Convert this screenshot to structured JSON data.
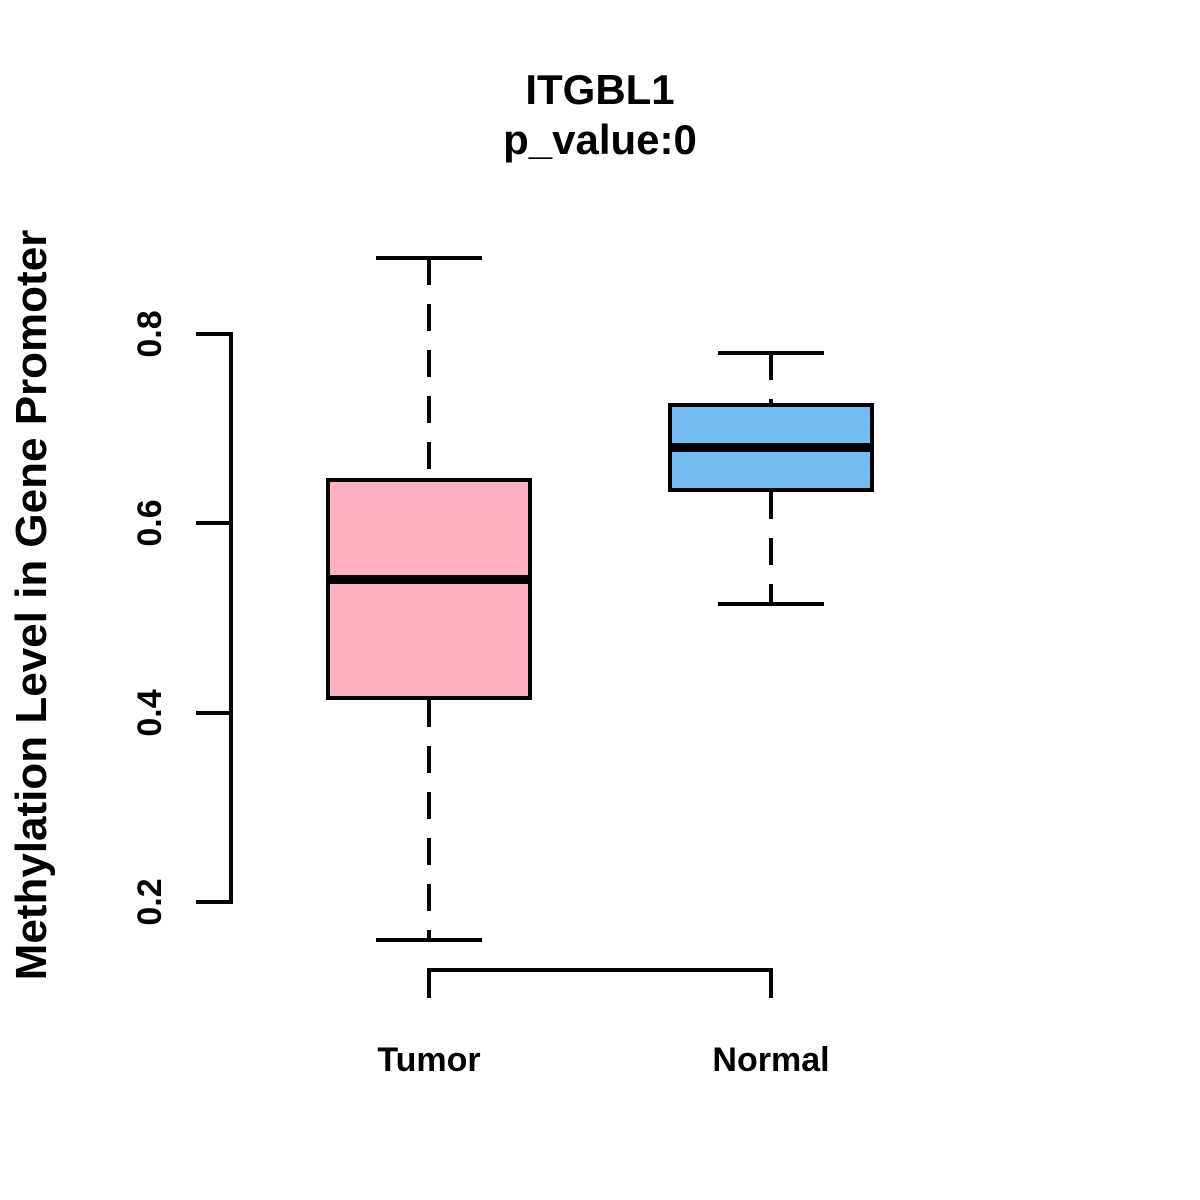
{
  "figure": {
    "background": "#ffffff",
    "foreground": "#000000"
  },
  "chart_data": {
    "type": "boxplot",
    "title": "ITGBL1",
    "subtitle": "p_value:0",
    "xlabel": "",
    "ylabel": "Methylation Level in Gene Promoter",
    "categories": [
      "Tumor",
      "Normal"
    ],
    "series": [
      {
        "name": "Tumor",
        "min": 0.16,
        "q1": 0.415,
        "median": 0.54,
        "q3": 0.645,
        "max": 0.88,
        "fill_color": "#FFB1C1"
      },
      {
        "name": "Normal",
        "min": 0.515,
        "q1": 0.635,
        "median": 0.68,
        "q3": 0.725,
        "max": 0.78,
        "fill_color": "#74BDF3"
      }
    ],
    "yticks": [
      0.2,
      0.4,
      0.6,
      0.8
    ],
    "ytick_labels": [
      "0.2",
      "0.4",
      "0.6",
      "0.8"
    ],
    "ylim": [
      0.13,
      0.91
    ],
    "grid": false,
    "legend": null,
    "whisker_style": "dashed",
    "box_border_color": "#000000",
    "median_color": "#000000"
  }
}
